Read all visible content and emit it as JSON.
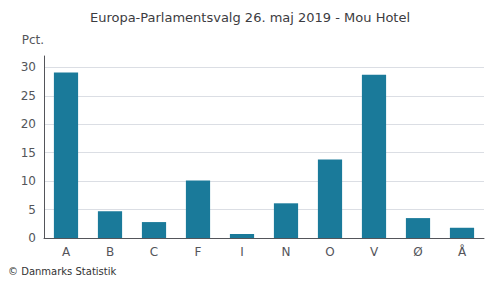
{
  "chart_data": {
    "type": "bar",
    "title": "Europa-Parlamentsvalg 26. maj 2019 - Mou Hotel",
    "categories": [
      "A",
      "B",
      "C",
      "F",
      "I",
      "N",
      "O",
      "V",
      "Ø",
      "Å"
    ],
    "values": [
      29.1,
      4.7,
      2.8,
      10.1,
      0.7,
      6.1,
      13.8,
      28.7,
      3.5,
      1.8
    ],
    "color": "#1a7a9a",
    "ylabel": "Pct.",
    "ylim": [
      0,
      32
    ],
    "yticks": [
      0,
      5,
      10,
      15,
      20,
      25,
      30
    ],
    "grid": true,
    "annotations": [
      "© Danmarks Statistik"
    ]
  }
}
